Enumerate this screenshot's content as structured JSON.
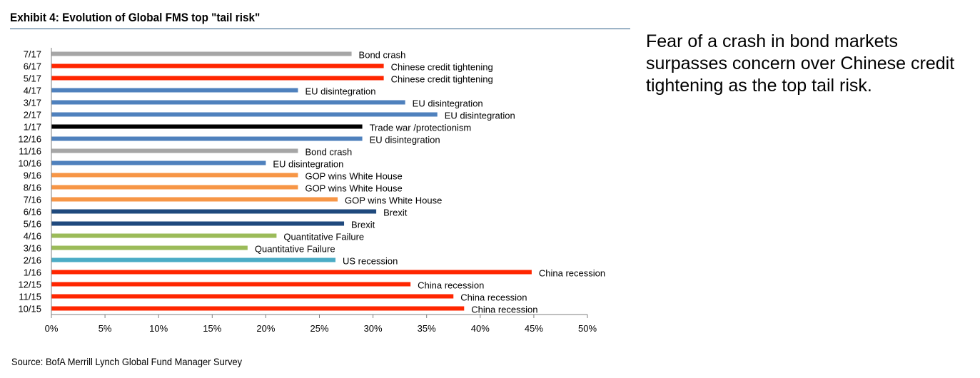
{
  "exhibit_title": "Exhibit 4: Evolution of Global FMS top \"tail risk\"",
  "side_note": "Fear of a crash in bond markets surpasses concern over Chinese credit tightening as the top tail risk.",
  "source": "Source: BofA Merrill Lynch Global Fund Manager Survey",
  "colors": {
    "Bond crash": "#a6a6a6",
    "Chinese credit tightening": "#ff2600",
    "EU disintegration": "#4f81bd",
    "Trade war /protectionism": "#000000",
    "GOP wins White House": "#f79646",
    "Brexit": "#1f497d",
    "Quantitative Failure": "#9bbb59",
    "US recession": "#4bacc6",
    "China recession": "#ff2600"
  },
  "chart_data": {
    "type": "bar",
    "orientation": "horizontal",
    "title": "Exhibit 4: Evolution of Global FMS top \"tail risk\"",
    "xlabel": "",
    "ylabel": "",
    "xlim": [
      0,
      50
    ],
    "x_ticks": [
      "0%",
      "5%",
      "10%",
      "15%",
      "20%",
      "25%",
      "30%",
      "35%",
      "40%",
      "45%",
      "50%"
    ],
    "grid": false,
    "categories": [
      "7/17",
      "6/17",
      "5/17",
      "4/17",
      "3/17",
      "2/17",
      "1/17",
      "12/16",
      "11/16",
      "10/16",
      "9/16",
      "8/16",
      "7/16",
      "6/16",
      "5/16",
      "4/16",
      "3/16",
      "2/16",
      "1/16",
      "12/15",
      "11/15",
      "10/15"
    ],
    "values": [
      28,
      31,
      31,
      23,
      33,
      36,
      29,
      29,
      23,
      20,
      23,
      23,
      26.7,
      30.3,
      27.3,
      21,
      18.3,
      26.5,
      44.8,
      33.5,
      37.5,
      38.5
    ],
    "bar_labels": [
      "Bond crash",
      "Chinese credit tightening",
      "Chinese credit tightening",
      "EU disintegration",
      "EU disintegration",
      "EU disintegration",
      "Trade war /protectionism",
      "EU disintegration",
      "Bond crash",
      "EU disintegration",
      "GOP wins White House",
      "GOP wins White House",
      "GOP wins White House",
      "Brexit",
      "Brexit",
      "Quantitative Failure",
      "Quantitative Failure",
      "US recession",
      "China recession",
      "China recession",
      "China recession",
      "China recession"
    ]
  }
}
